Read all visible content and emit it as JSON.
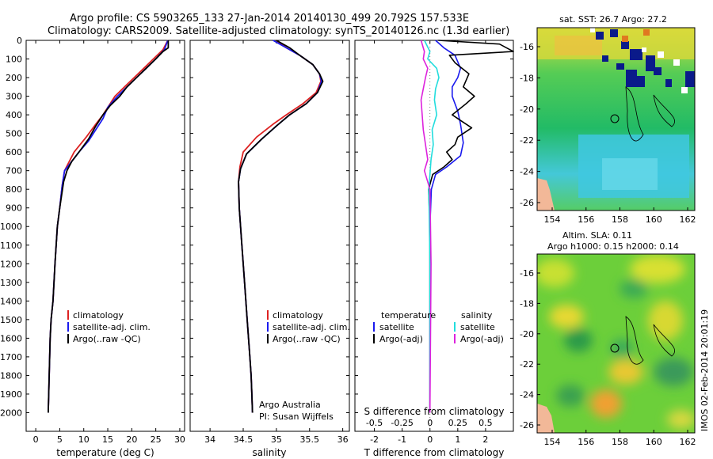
{
  "title": {
    "line1": "Argo profile: CS 5903265_133 27-Jan-2014 20140130_499 20.792S 157.533E",
    "line2": "Climatology: CARS2009. Satellite-adjusted climatology: synTS_20140126.nc (1.3d earlier)"
  },
  "colors": {
    "clim": "#dd2222",
    "sat": "#1a1aee",
    "argo": "#000000",
    "sal_sat": "#22dddd",
    "sal_argo": "#dd22dd"
  },
  "chart_data": [
    {
      "type": "line",
      "name": "temperature",
      "xlabel": "temperature (deg C)",
      "ylabel": "",
      "xlim": [
        -2,
        31
      ],
      "ylim": [
        0,
        2100
      ],
      "xticks": [
        0,
        5,
        10,
        15,
        20,
        25,
        30
      ],
      "yticks": [
        0,
        100,
        200,
        300,
        400,
        500,
        600,
        700,
        800,
        900,
        1000,
        1100,
        1200,
        1300,
        1400,
        1500,
        1600,
        1700,
        1800,
        1900,
        2000
      ],
      "legend": [
        "climatology",
        "satellite-adj. clim.",
        "Argo(..raw -QC)"
      ],
      "series": [
        {
          "name": "climatology",
          "color": "#dd2222",
          "x": [
            27.5,
            26.5,
            24.5,
            22.5,
            20.5,
            18.5,
            16.5,
            14,
            12.5,
            10.5,
            8,
            7,
            6,
            5.5,
            5,
            4.5,
            4,
            3.6,
            3.2,
            3,
            2.8,
            2.7,
            2.6
          ],
          "y": [
            0,
            50,
            100,
            150,
            200,
            250,
            300,
            400,
            450,
            520,
            600,
            650,
            700,
            780,
            900,
            1000,
            1200,
            1400,
            1500,
            1600,
            1800,
            1900,
            2000
          ]
        },
        {
          "name": "satellite-adj. clim.",
          "color": "#1a1aee",
          "x": [
            27.5,
            26.8,
            25,
            23,
            21,
            19,
            17,
            15,
            14,
            12.5,
            11,
            9,
            7.5,
            6,
            5.5,
            5,
            4.5,
            4,
            3.6,
            3.2,
            3,
            2.8,
            2.7,
            2.6
          ],
          "y": [
            0,
            50,
            100,
            150,
            200,
            250,
            300,
            360,
            420,
            480,
            540,
            600,
            650,
            700,
            780,
            900,
            1000,
            1200,
            1400,
            1500,
            1600,
            1800,
            1900,
            2000
          ]
        },
        {
          "name": "Argo(..raw -QC)",
          "color": "#000000",
          "x": [
            27.6,
            27.6,
            26.5,
            25,
            23,
            21,
            19,
            17.5,
            15.5,
            14,
            12.5,
            11,
            9,
            7.5,
            6.5,
            5.8,
            5,
            4.5,
            4,
            3.6,
            3.2,
            3,
            2.8,
            2.7,
            2.6
          ],
          "y": [
            0,
            40,
            60,
            100,
            150,
            200,
            250,
            300,
            350,
            400,
            460,
            530,
            600,
            650,
            700,
            760,
            900,
            1000,
            1200,
            1400,
            1500,
            1600,
            1800,
            1900,
            2000
          ]
        }
      ]
    },
    {
      "type": "line",
      "name": "salinity",
      "xlabel": "salinity",
      "xlim": [
        33.7,
        36.1
      ],
      "ylim": [
        0,
        2100
      ],
      "xticks": [
        34,
        34.5,
        35,
        35.5,
        36
      ],
      "legend": [
        "climatology",
        "satellite-adj. clim.",
        "Argo(..raw -QC)"
      ],
      "annotation": [
        "Argo Australia",
        "PI: Susan Wijffels"
      ],
      "series": [
        {
          "name": "climatology",
          "color": "#dd2222",
          "x": [
            35,
            35.15,
            35.35,
            35.55,
            35.65,
            35.67,
            35.6,
            35.4,
            35.15,
            34.95,
            34.7,
            34.5,
            34.45,
            34.43,
            34.44,
            34.48,
            34.52,
            34.56,
            34.6,
            34.62,
            34.63,
            34.64
          ],
          "y": [
            0,
            40,
            80,
            130,
            180,
            220,
            280,
            340,
            400,
            450,
            520,
            600,
            680,
            760,
            900,
            1100,
            1300,
            1500,
            1700,
            1800,
            1900,
            2000
          ]
        },
        {
          "name": "satellite-adj. clim.",
          "color": "#1a1aee",
          "x": [
            34.95,
            35.15,
            35.35,
            35.55,
            35.65,
            35.68,
            35.62,
            35.45,
            35.2,
            35,
            34.78,
            34.55,
            34.46,
            34.43,
            34.44,
            34.48,
            34.52,
            34.56,
            34.6,
            34.62,
            34.63,
            34.64
          ],
          "y": [
            0,
            40,
            80,
            130,
            180,
            220,
            280,
            340,
            400,
            460,
            530,
            610,
            690,
            760,
            900,
            1100,
            1300,
            1500,
            1700,
            1800,
            1900,
            2000
          ]
        },
        {
          "name": "Argo(..raw -QC)",
          "color": "#000000",
          "x": [
            35,
            35.2,
            35.35,
            35.55,
            35.65,
            35.7,
            35.62,
            35.45,
            35.2,
            35,
            34.78,
            34.55,
            34.46,
            34.43,
            34.44,
            34.48,
            34.52,
            34.56,
            34.6,
            34.62,
            34.63,
            34.64
          ],
          "y": [
            0,
            40,
            80,
            130,
            180,
            220,
            280,
            340,
            400,
            460,
            530,
            610,
            690,
            760,
            900,
            1100,
            1300,
            1500,
            1700,
            1800,
            1900,
            2000
          ]
        }
      ]
    },
    {
      "type": "line",
      "name": "differences",
      "xlabel": "T difference from climatology",
      "xlabel_top": "S difference from climatology",
      "xlim": [
        -2.7,
        3
      ],
      "xticks": [
        -2,
        -1,
        0,
        1,
        2
      ],
      "xtick_labels": [
        "-2",
        "-1",
        "0",
        "1",
        "2"
      ],
      "sticks": [
        -0.5,
        -0.25,
        0,
        0.25,
        0.5
      ],
      "stick_labels": [
        "-0.5",
        "-0.25",
        "0",
        "0.25",
        "0.5"
      ],
      "legend_temperature": [
        "temperature",
        "satellite",
        "Argo(-adj)"
      ],
      "legend_salinity": [
        "salinity",
        "satellite",
        "Argo(-adj)"
      ],
      "series": [
        {
          "name": "temperature satellite",
          "color": "#1a1aee",
          "x": [
            0.2,
            0.5,
            0.9,
            1.1,
            1.0,
            0.8,
            0.8,
            1.0,
            1.1,
            1.2,
            1.1,
            0.6,
            0.2,
            0.05,
            0,
            0,
            0
          ],
          "y": [
            0,
            40,
            80,
            150,
            200,
            250,
            300,
            380,
            450,
            550,
            620,
            680,
            720,
            800,
            1000,
            1500,
            2000
          ]
        },
        {
          "name": "temperature Argo",
          "color": "#000000",
          "x": [
            0.3,
            2.5,
            3.0,
            0.7,
            0.9,
            1.4,
            1.2,
            1.6,
            1.3,
            0.8,
            1.1,
            1.5,
            1.0,
            0.9,
            0.6,
            0.8,
            0.5,
            0.3,
            0.1,
            -0.05,
            0,
            0,
            0,
            0,
            0
          ],
          "y": [
            0,
            20,
            60,
            80,
            120,
            180,
            250,
            300,
            340,
            400,
            430,
            470,
            520,
            560,
            600,
            640,
            680,
            700,
            720,
            800,
            1000,
            1200,
            1500,
            1800,
            2000
          ]
        },
        {
          "name": "salinity satellite",
          "color": "#22dddd",
          "x": [
            -0.05,
            0,
            -0.02,
            0.06,
            0.08,
            0.05,
            0.04,
            0.06,
            0.02,
            0.03,
            0.01,
            0,
            -0.01,
            0,
            0,
            0
          ],
          "y": [
            0,
            60,
            100,
            150,
            200,
            260,
            320,
            400,
            480,
            560,
            640,
            720,
            800,
            1200,
            1600,
            2000
          ]
        },
        {
          "name": "salinity Argo",
          "color": "#dd22dd",
          "x": [
            -0.08,
            -0.05,
            -0.06,
            -0.02,
            -0.04,
            -0.06,
            -0.08,
            -0.07,
            -0.06,
            -0.04,
            -0.02,
            -0.05,
            0,
            0.01,
            0
          ],
          "y": [
            0,
            60,
            100,
            150,
            200,
            260,
            320,
            400,
            480,
            560,
            640,
            700,
            800,
            1200,
            2000
          ]
        }
      ]
    }
  ],
  "maps": {
    "sst": {
      "title": "sat. SST: 26.7  Argo: 27.2",
      "xticks": [
        "154",
        "156",
        "158",
        "160",
        "162"
      ],
      "yticks": [
        "-16",
        "-18",
        "-20",
        "-22",
        "-24",
        "-26"
      ]
    },
    "sla": {
      "title1": "Altim. SLA: 0.11",
      "title2": "Argo h1000: 0.15  h2000: 0.14",
      "xticks": [
        "154",
        "156",
        "158",
        "160",
        "162"
      ],
      "yticks": [
        "-16",
        "-18",
        "-20",
        "-22",
        "-24",
        "-26"
      ]
    }
  },
  "credit": "IMOS 02-Feb-2014 20:01:19"
}
